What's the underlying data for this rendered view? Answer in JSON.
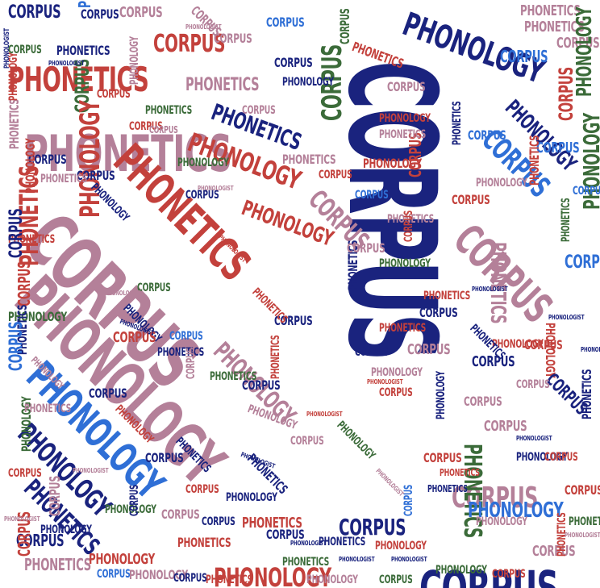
{
  "words": {
    "corpus": "CORPUS",
    "phonetics": "PHONETICS",
    "phonology": "PHONOLOGY",
    "phonologist": "PHONOLOGIST"
  },
  "colors": {
    "navy": "#1a237e",
    "blue": "#2f6fd6",
    "mauve": "#b48099",
    "red": "#c3413c",
    "green": "#3b6b39"
  }
}
